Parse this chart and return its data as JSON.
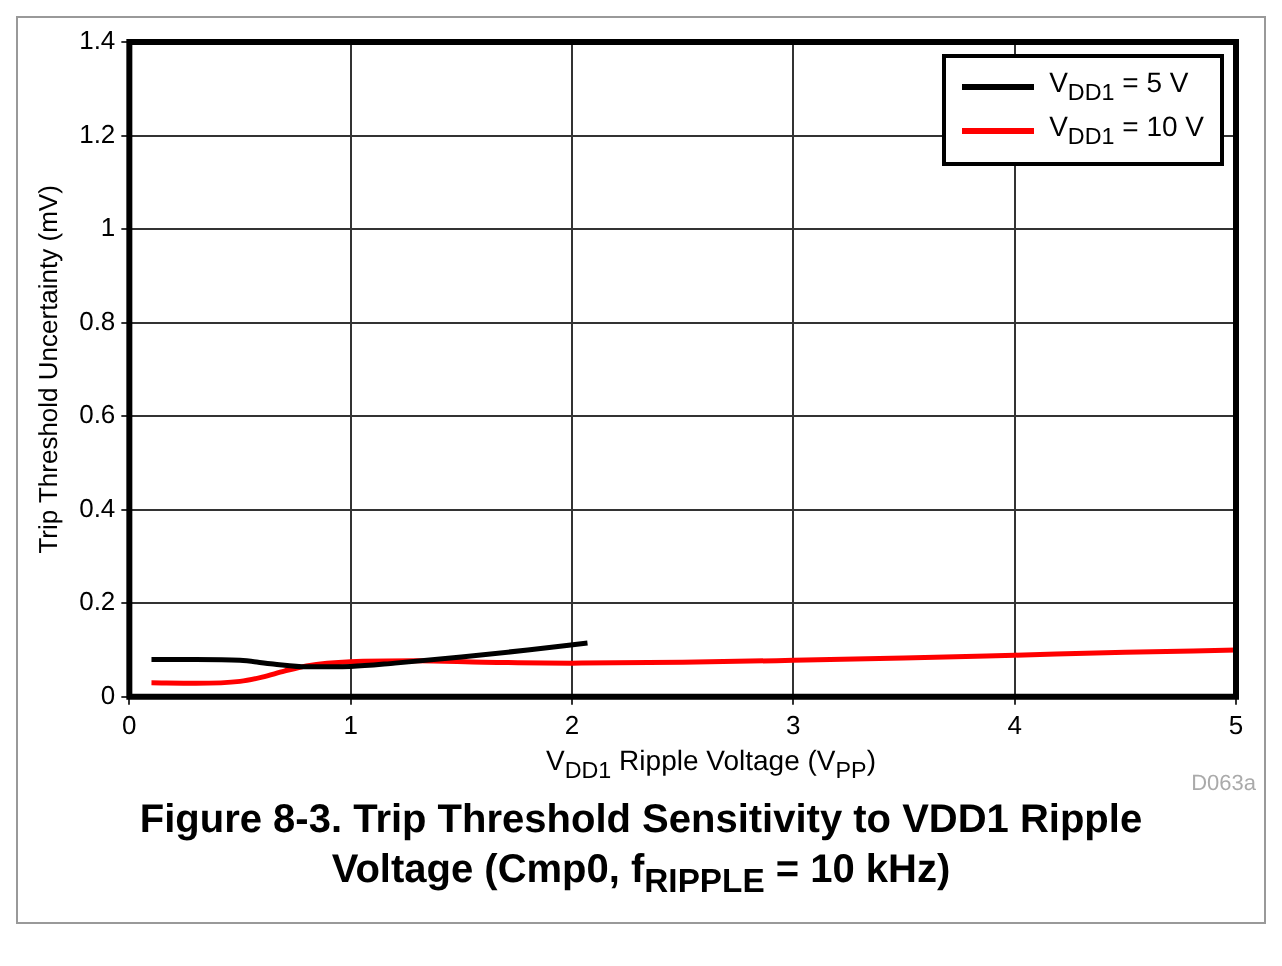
{
  "chart_data": {
    "type": "line",
    "title": "Figure 8-3. Trip Threshold Sensitivity to VDD1 Ripple Voltage (Cmp0, f$_{RIPPLE}$ = 10 kHz)",
    "xlabel": "V$_{DD1}$ Ripple Voltage (V$_{PP}$)",
    "ylabel": "Trip Threshold Uncertainty (mV)",
    "annotations": [
      "D063a"
    ],
    "xlim": [
      0,
      5
    ],
    "xticks": [
      0,
      1,
      2,
      3,
      4,
      5
    ],
    "ylim": [
      0,
      1.4
    ],
    "yticks": [
      0,
      0.2,
      0.4,
      0.6,
      0.8,
      1,
      1.2,
      1.4
    ],
    "grid": true,
    "legend": "top right",
    "marker": "none",
    "line_style": "solid",
    "series": [
      {
        "name": "V$_{DD1}$ = 5 V",
        "color": "#000000",
        "x": [
          0.1,
          0.3,
          0.5,
          0.65,
          0.8,
          1.0,
          1.2,
          1.5,
          1.8,
          2.07
        ],
        "values": [
          0.08,
          0.08,
          0.078,
          0.07,
          0.064,
          0.065,
          0.072,
          0.085,
          0.1,
          0.115
        ]
      },
      {
        "name": "V$_{DD1}$ = 10 V",
        "color": "#ff0000",
        "x": [
          0.1,
          0.3,
          0.5,
          0.6,
          0.7,
          0.8,
          1.0,
          1.3,
          1.6,
          2.0,
          2.5,
          3.0,
          3.5,
          4.0,
          4.5,
          5.0
        ],
        "values": [
          0.03,
          0.029,
          0.033,
          0.042,
          0.055,
          0.066,
          0.075,
          0.077,
          0.074,
          0.072,
          0.074,
          0.078,
          0.083,
          0.089,
          0.095,
          0.1
        ]
      }
    ]
  }
}
